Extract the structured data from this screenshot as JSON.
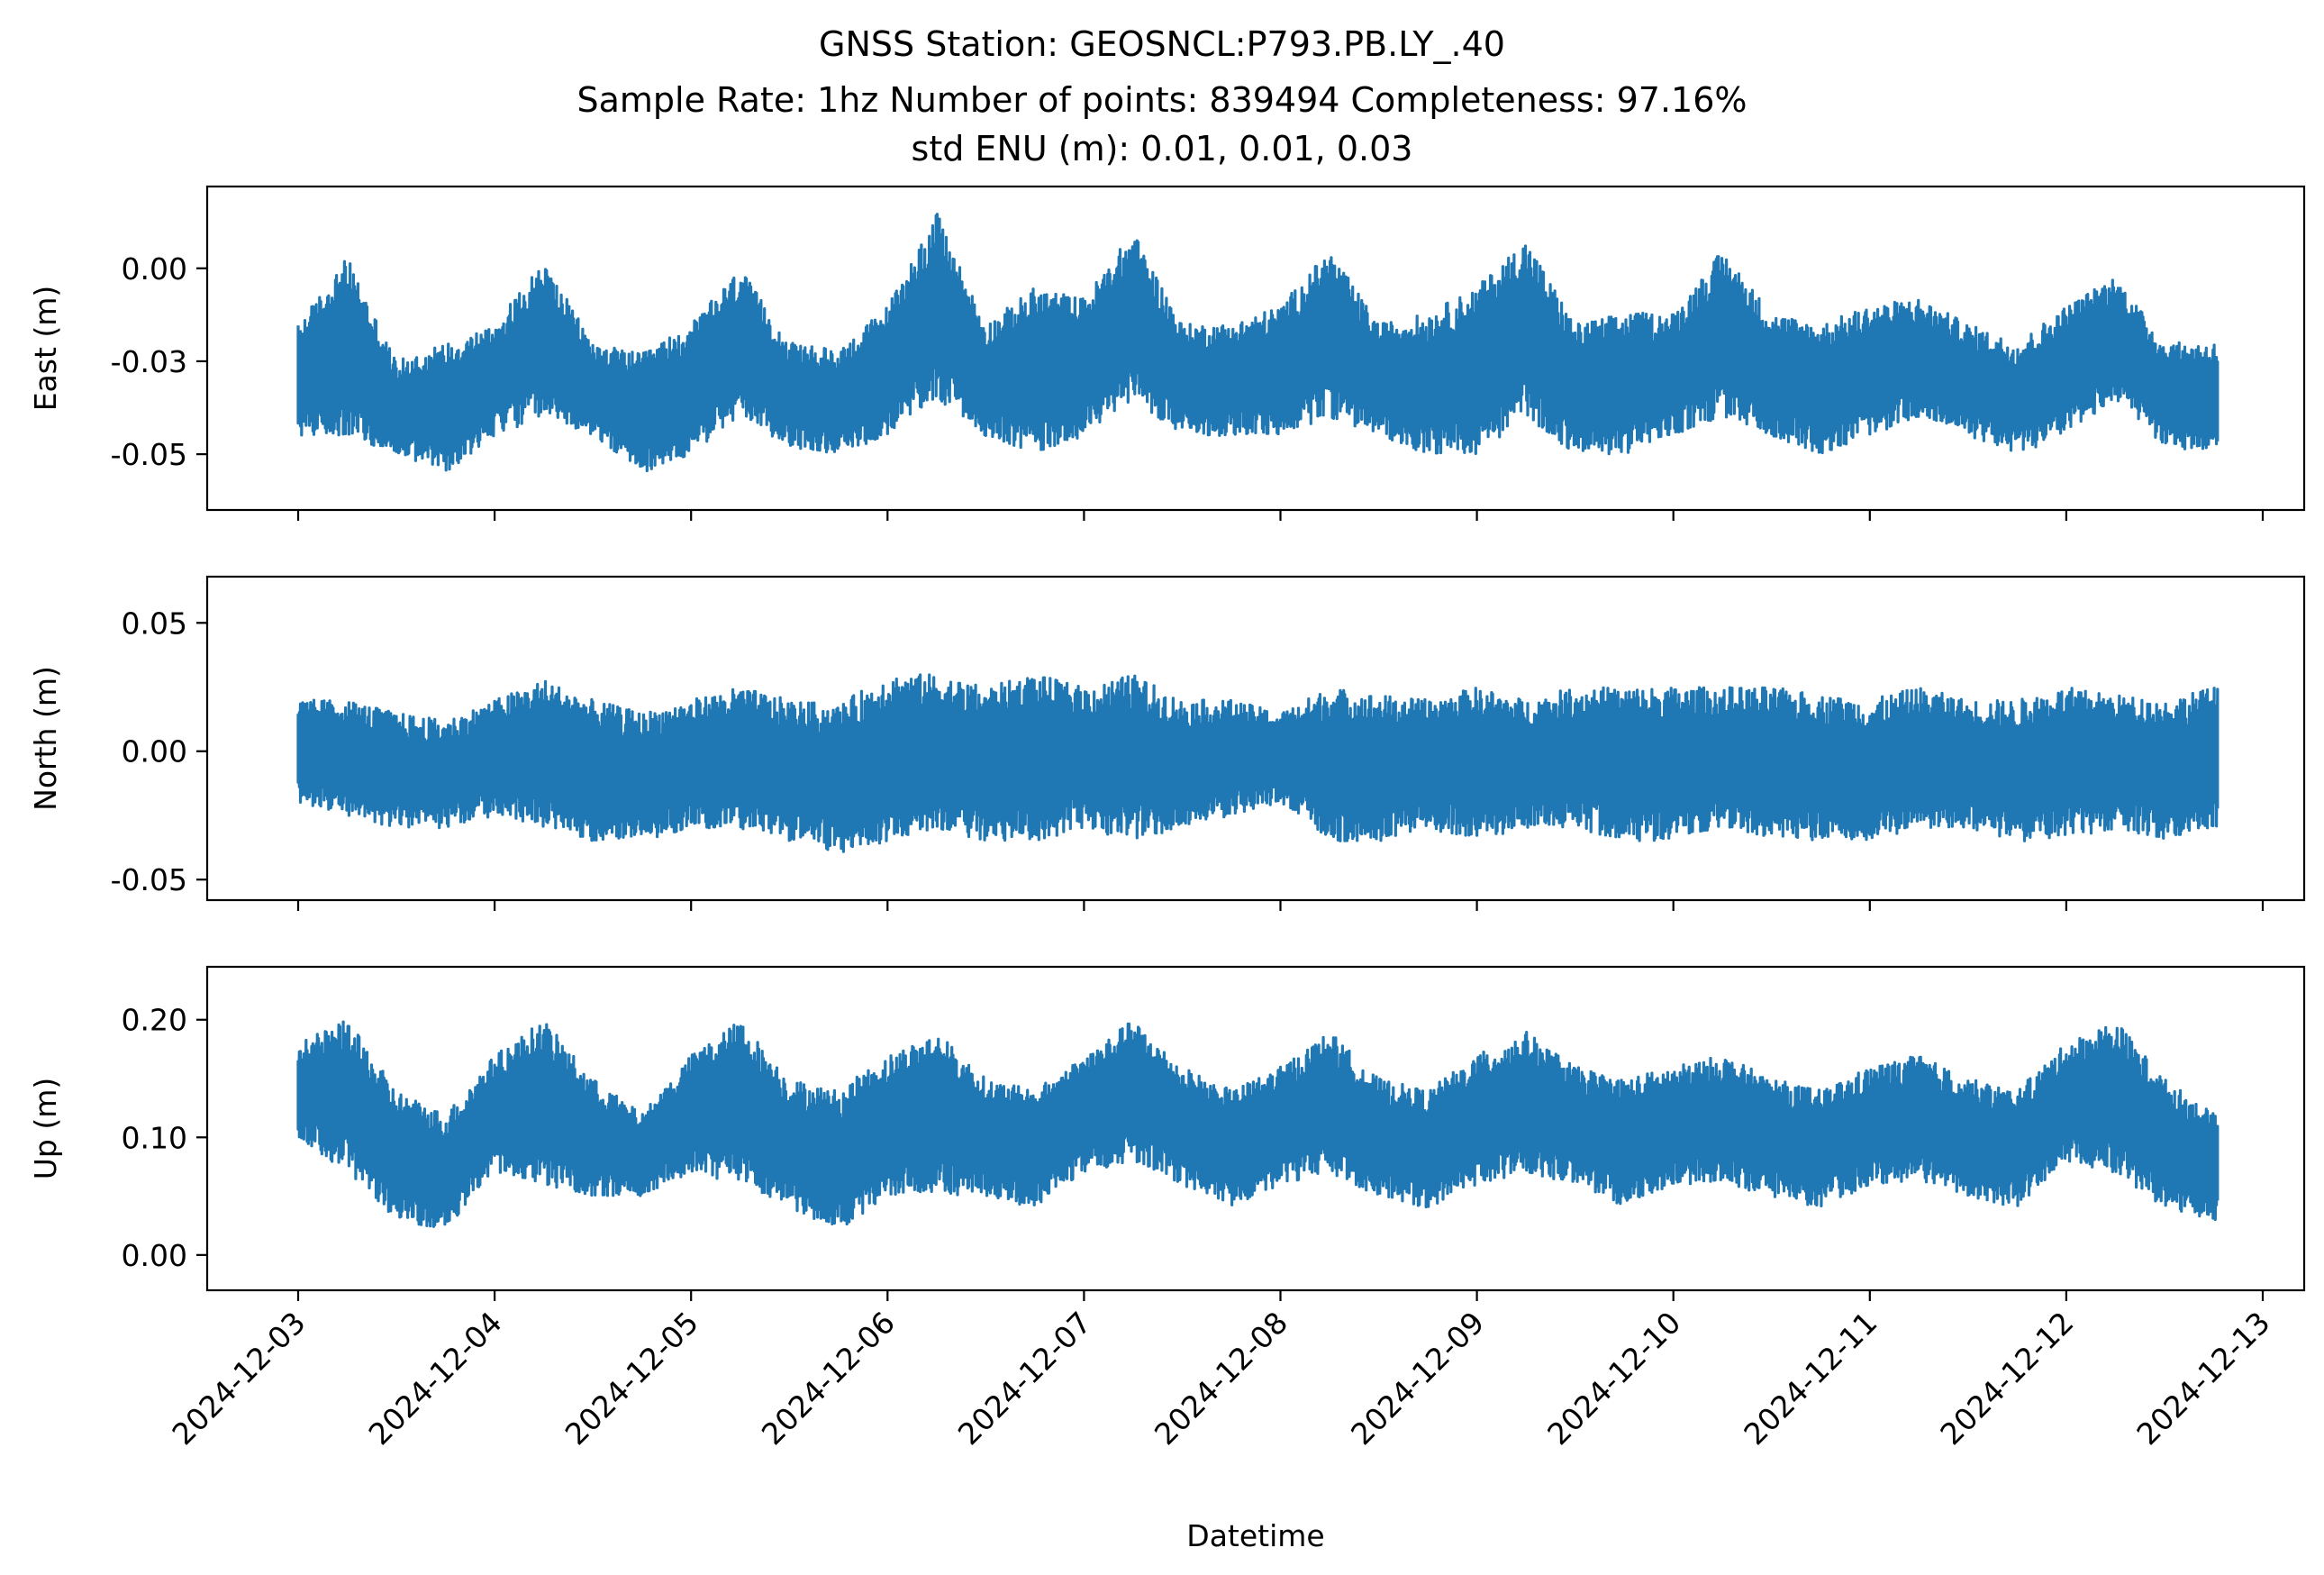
{
  "title_lines": [
    "GNSS Station: GEOSNCL:P793.PB.LY_.40",
    "Sample Rate: 1hz   Number of points: 839494    Completeness:  97.16%",
    "std ENU (m):  0.01, 0.01, 0.03"
  ],
  "colors": {
    "series": "#1f77b4",
    "axes": "#000000",
    "background": "#ffffff"
  },
  "chart_data": [
    {
      "type": "line",
      "ylabel": "East (m)",
      "ylim": [
        -0.065,
        0.022
      ],
      "yticks": [
        0.0,
        -0.025,
        -0.05
      ],
      "ytick_labels": [
        "0.00",
        "-0.03",
        "-0.05"
      ],
      "xticks": [
        "2024-12-03",
        "2024-12-04",
        "2024-12-05",
        "2024-12-06",
        "2024-12-07",
        "2024-12-08",
        "2024-12-09",
        "2024-12-10",
        "2024-12-11",
        "2024-12-12",
        "2024-12-13"
      ],
      "x": [
        "2024-12-03 00:00",
        "2024-12-03 06:00",
        "2024-12-03 12:00",
        "2024-12-03 18:00",
        "2024-12-04 00:00",
        "2024-12-04 06:00",
        "2024-12-04 12:00",
        "2024-12-04 18:00",
        "2024-12-05 00:00",
        "2024-12-05 06:00",
        "2024-12-05 12:00",
        "2024-12-05 18:00",
        "2024-12-06 00:00",
        "2024-12-06 06:00",
        "2024-12-06 12:00",
        "2024-12-06 18:00",
        "2024-12-07 00:00",
        "2024-12-07 06:00",
        "2024-12-07 12:00",
        "2024-12-07 18:00",
        "2024-12-08 00:00",
        "2024-12-08 06:00",
        "2024-12-08 12:00",
        "2024-12-08 18:00",
        "2024-12-09 00:00",
        "2024-12-09 06:00",
        "2024-12-09 12:00",
        "2024-12-09 18:00",
        "2024-12-10 00:00",
        "2024-12-10 06:00",
        "2024-12-10 12:00",
        "2024-12-10 18:00",
        "2024-12-11 00:00",
        "2024-12-11 06:00",
        "2024-12-11 12:00",
        "2024-12-11 18:00",
        "2024-12-12 00:00",
        "2024-12-12 06:00",
        "2024-12-12 12:00",
        "2024-12-12 18:00"
      ],
      "series": [
        {
          "name": "",
          "upper": [
            -0.015,
            0.003,
            -0.025,
            -0.02,
            -0.015,
            0.002,
            -0.02,
            -0.023,
            -0.015,
            0.0,
            -0.02,
            -0.022,
            -0.01,
            0.015,
            -0.015,
            -0.005,
            -0.008,
            0.01,
            -0.015,
            -0.015,
            -0.01,
            0.005,
            -0.015,
            -0.012,
            -0.005,
            0.008,
            -0.015,
            -0.012,
            -0.012,
            0.005,
            -0.012,
            -0.015,
            -0.01,
            -0.008,
            -0.015,
            -0.02,
            -0.01,
            -0.002,
            -0.02,
            -0.02
          ],
          "lower": [
            -0.045,
            -0.045,
            -0.05,
            -0.055,
            -0.045,
            -0.04,
            -0.045,
            -0.055,
            -0.05,
            -0.04,
            -0.048,
            -0.05,
            -0.045,
            -0.035,
            -0.045,
            -0.05,
            -0.045,
            -0.035,
            -0.045,
            -0.045,
            -0.045,
            -0.04,
            -0.045,
            -0.05,
            -0.05,
            -0.04,
            -0.05,
            -0.05,
            -0.045,
            -0.04,
            -0.045,
            -0.05,
            -0.045,
            -0.04,
            -0.045,
            -0.05,
            -0.045,
            -0.035,
            -0.048,
            -0.05
          ]
        }
      ]
    },
    {
      "type": "line",
      "ylabel": "North (m)",
      "ylim": [
        -0.058,
        0.068
      ],
      "yticks": [
        0.05,
        0.0,
        -0.05
      ],
      "ytick_labels": [
        "0.05",
        "0.00",
        "-0.05"
      ],
      "xticks": [
        "2024-12-03",
        "2024-12-04",
        "2024-12-05",
        "2024-12-06",
        "2024-12-07",
        "2024-12-08",
        "2024-12-09",
        "2024-12-10",
        "2024-12-11",
        "2024-12-12",
        "2024-12-13"
      ],
      "x": [
        "2024-12-03 00:00",
        "2024-12-03 06:00",
        "2024-12-03 12:00",
        "2024-12-03 18:00",
        "2024-12-04 00:00",
        "2024-12-04 06:00",
        "2024-12-04 12:00",
        "2024-12-04 18:00",
        "2024-12-05 00:00",
        "2024-12-05 06:00",
        "2024-12-05 12:00",
        "2024-12-05 18:00",
        "2024-12-06 00:00",
        "2024-12-06 06:00",
        "2024-12-06 12:00",
        "2024-12-06 18:00",
        "2024-12-07 00:00",
        "2024-12-07 06:00",
        "2024-12-07 12:00",
        "2024-12-07 18:00",
        "2024-12-08 00:00",
        "2024-12-08 06:00",
        "2024-12-08 12:00",
        "2024-12-08 18:00",
        "2024-12-09 00:00",
        "2024-12-09 06:00",
        "2024-12-09 12:00",
        "2024-12-09 18:00",
        "2024-12-10 00:00",
        "2024-12-10 06:00",
        "2024-12-10 12:00",
        "2024-12-10 18:00",
        "2024-12-11 00:00",
        "2024-12-11 06:00",
        "2024-12-11 12:00",
        "2024-12-11 18:00",
        "2024-12-12 00:00",
        "2024-12-12 06:00",
        "2024-12-12 12:00",
        "2024-12-12 18:00"
      ],
      "series": [
        {
          "name": "",
          "upper": [
            0.02,
            0.02,
            0.015,
            0.012,
            0.02,
            0.028,
            0.02,
            0.015,
            0.02,
            0.025,
            0.02,
            0.018,
            0.03,
            0.03,
            0.025,
            0.03,
            0.025,
            0.03,
            0.02,
            0.02,
            0.015,
            0.025,
            0.022,
            0.02,
            0.025,
            0.02,
            0.025,
            0.025,
            0.025,
            0.025,
            0.025,
            0.022,
            0.02,
            0.025,
            0.02,
            0.02,
            0.025,
            0.022,
            0.02,
            0.025
          ],
          "lower": [
            -0.02,
            -0.025,
            -0.03,
            -0.03,
            -0.025,
            -0.03,
            -0.035,
            -0.035,
            -0.03,
            -0.03,
            -0.035,
            -0.04,
            -0.035,
            -0.03,
            -0.035,
            -0.035,
            -0.03,
            -0.035,
            -0.03,
            -0.025,
            -0.02,
            -0.035,
            -0.035,
            -0.03,
            -0.035,
            -0.03,
            -0.03,
            -0.035,
            -0.035,
            -0.03,
            -0.035,
            -0.035,
            -0.035,
            -0.03,
            -0.03,
            -0.035,
            -0.035,
            -0.03,
            -0.035,
            -0.03
          ]
        }
      ]
    },
    {
      "type": "line",
      "ylabel": "Up (m)",
      "ylim": [
        -0.03,
        0.245
      ],
      "yticks": [
        0.2,
        0.1,
        0.0
      ],
      "ytick_labels": [
        "0.20",
        "0.10",
        "0.00"
      ],
      "xticks": [
        "2024-12-03",
        "2024-12-04",
        "2024-12-05",
        "2024-12-06",
        "2024-12-07",
        "2024-12-08",
        "2024-12-09",
        "2024-12-10",
        "2024-12-11",
        "2024-12-12",
        "2024-12-13"
      ],
      "xtick_labels": [
        "2024-12-03",
        "2024-12-04",
        "2024-12-05",
        "2024-12-06",
        "2024-12-07",
        "2024-12-08",
        "2024-12-09",
        "2024-12-10",
        "2024-12-11",
        "2024-12-12",
        "2024-12-13"
      ],
      "xlabel": "Datetime",
      "x": [
        "2024-12-03 00:00",
        "2024-12-03 06:00",
        "2024-12-03 12:00",
        "2024-12-03 18:00",
        "2024-12-04 00:00",
        "2024-12-04 06:00",
        "2024-12-04 12:00",
        "2024-12-04 18:00",
        "2024-12-05 00:00",
        "2024-12-05 06:00",
        "2024-12-05 12:00",
        "2024-12-05 18:00",
        "2024-12-06 00:00",
        "2024-12-06 06:00",
        "2024-12-06 12:00",
        "2024-12-06 18:00",
        "2024-12-07 00:00",
        "2024-12-07 06:00",
        "2024-12-07 12:00",
        "2024-12-07 18:00",
        "2024-12-08 00:00",
        "2024-12-08 06:00",
        "2024-12-08 12:00",
        "2024-12-08 18:00",
        "2024-12-09 00:00",
        "2024-12-09 06:00",
        "2024-12-09 12:00",
        "2024-12-09 18:00",
        "2024-12-10 00:00",
        "2024-12-10 06:00",
        "2024-12-10 12:00",
        "2024-12-10 18:00",
        "2024-12-11 00:00",
        "2024-12-11 06:00",
        "2024-12-11 12:00",
        "2024-12-11 18:00",
        "2024-12-12 00:00",
        "2024-12-12 06:00",
        "2024-12-12 12:00",
        "2024-12-12 18:00"
      ],
      "series": [
        {
          "name": "",
          "upper": [
            0.18,
            0.2,
            0.14,
            0.12,
            0.17,
            0.2,
            0.15,
            0.12,
            0.17,
            0.2,
            0.15,
            0.14,
            0.17,
            0.19,
            0.15,
            0.14,
            0.17,
            0.2,
            0.16,
            0.14,
            0.16,
            0.19,
            0.15,
            0.14,
            0.17,
            0.19,
            0.16,
            0.15,
            0.16,
            0.17,
            0.15,
            0.14,
            0.16,
            0.17,
            0.15,
            0.14,
            0.18,
            0.2,
            0.15,
            0.12
          ],
          "lower": [
            0.1,
            0.07,
            0.03,
            0.02,
            0.07,
            0.06,
            0.05,
            0.05,
            0.07,
            0.06,
            0.04,
            0.02,
            0.05,
            0.05,
            0.05,
            0.04,
            0.07,
            0.08,
            0.06,
            0.04,
            0.06,
            0.07,
            0.05,
            0.04,
            0.06,
            0.07,
            0.06,
            0.04,
            0.06,
            0.06,
            0.05,
            0.04,
            0.06,
            0.06,
            0.05,
            0.04,
            0.08,
            0.07,
            0.04,
            0.03
          ]
        }
      ]
    }
  ]
}
